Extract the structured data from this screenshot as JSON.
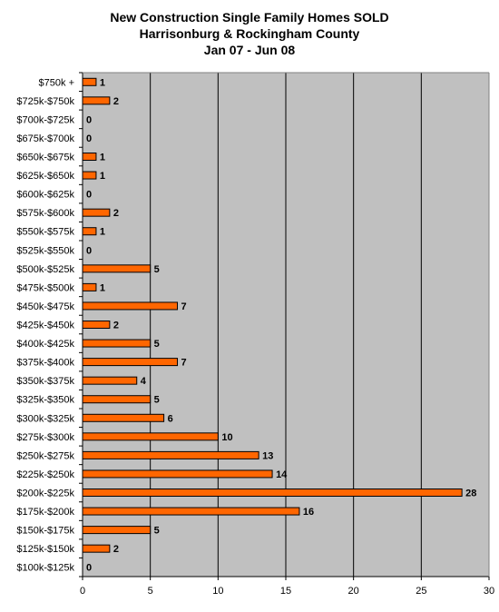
{
  "chart_data": {
    "type": "bar",
    "orientation": "horizontal",
    "title": [
      "New Construction Single Family Homes SOLD",
      "Harrisonburg & Rockingham County",
      "Jan 07 - Jun 08"
    ],
    "categories": [
      "$750k +",
      "$725k-$750k",
      "$700k-$725k",
      "$675k-$700k",
      "$650k-$675k",
      "$625k-$650k",
      "$600k-$625k",
      "$575k-$600k",
      "$550k-$575k",
      "$525k-$550k",
      "$500k-$525k",
      "$475k-$500k",
      "$450k-$475k",
      "$425k-$450k",
      "$400k-$425k",
      "$375k-$400k",
      "$350k-$375k",
      "$325k-$350k",
      "$300k-$325k",
      "$275k-$300k",
      "$250k-$275k",
      "$225k-$250k",
      "$200k-$225k",
      "$175k-$200k",
      "$150k-$175k",
      "$125k-$150k",
      "$100k-$125k"
    ],
    "values": [
      1,
      2,
      0,
      0,
      1,
      1,
      0,
      2,
      1,
      0,
      5,
      1,
      7,
      2,
      5,
      7,
      4,
      5,
      6,
      10,
      13,
      14,
      28,
      16,
      5,
      2,
      0
    ],
    "xticks": [
      0,
      5,
      10,
      15,
      20,
      25,
      30
    ],
    "xlim": [
      0,
      30
    ],
    "grid": true,
    "colors": {
      "bar": "#ff6600",
      "bar_edge": "#000000",
      "plot_bg": "#c0c0c0"
    }
  }
}
